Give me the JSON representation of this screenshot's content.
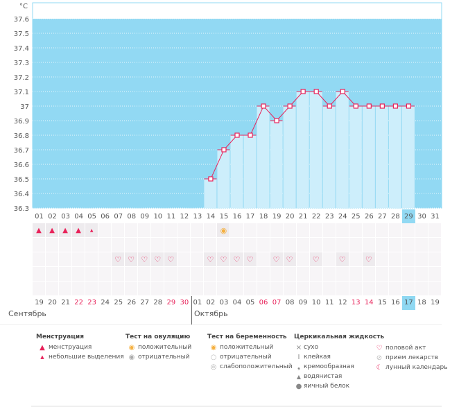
{
  "chart_data": {
    "type": "bar",
    "unit": "°C",
    "ylim": [
      36.3,
      37.6
    ],
    "yticks": [
      "37.6",
      "37.5",
      "37.4",
      "37.3",
      "37.2",
      "37.1",
      "37",
      "36.9",
      "36.8",
      "36.7",
      "36.6",
      "36.5",
      "36.4",
      "36.3"
    ],
    "categories": [
      "01",
      "02",
      "03",
      "04",
      "05",
      "06",
      "07",
      "08",
      "09",
      "10",
      "11",
      "12",
      "13",
      "14",
      "15",
      "16",
      "17",
      "18",
      "19",
      "20",
      "21",
      "22",
      "23",
      "24",
      "25",
      "26",
      "27",
      "28",
      "29",
      "30",
      "31"
    ],
    "values": [
      null,
      null,
      null,
      null,
      null,
      null,
      null,
      null,
      null,
      null,
      null,
      null,
      null,
      36.5,
      36.7,
      36.8,
      36.8,
      37.0,
      36.9,
      37.0,
      37.1,
      37.1,
      37.0,
      37.1,
      37.0,
      37.0,
      37.0,
      37.0,
      37.0,
      null,
      null
    ],
    "highlight_day": "29",
    "colors": {
      "background": "#92d9f3",
      "bar": "#cdeefb",
      "line": "#e8225a"
    }
  },
  "rows": {
    "menstruation": {
      "1": "heavy",
      "2": "heavy",
      "3": "heavy",
      "4": "heavy",
      "5": "light"
    },
    "ovulation_test": {
      "15": "positive"
    },
    "intercourse": [
      7,
      8,
      9,
      10,
      11,
      14,
      15,
      16,
      17,
      19,
      20,
      22,
      24,
      26
    ]
  },
  "dates": [
    {
      "d": "19"
    },
    {
      "d": "20"
    },
    {
      "d": "21"
    },
    {
      "d": "22",
      "red": true
    },
    {
      "d": "23",
      "red": true
    },
    {
      "d": "24"
    },
    {
      "d": "25"
    },
    {
      "d": "26"
    },
    {
      "d": "27"
    },
    {
      "d": "28"
    },
    {
      "d": "29",
      "red": true
    },
    {
      "d": "30",
      "red": true
    },
    {
      "d": "01"
    },
    {
      "d": "02"
    },
    {
      "d": "03"
    },
    {
      "d": "04"
    },
    {
      "d": "05"
    },
    {
      "d": "06",
      "red": true
    },
    {
      "d": "07",
      "red": true
    },
    {
      "d": "08"
    },
    {
      "d": "09"
    },
    {
      "d": "10"
    },
    {
      "d": "11"
    },
    {
      "d": "12"
    },
    {
      "d": "13",
      "red": true
    },
    {
      "d": "14",
      "red": true
    },
    {
      "d": "15"
    },
    {
      "d": "16"
    },
    {
      "d": "17",
      "today": true
    },
    {
      "d": "18"
    },
    {
      "d": "19"
    }
  ],
  "months": {
    "first": "Сентябрь",
    "second": "Октябрь"
  },
  "legend": {
    "menstruation": {
      "title": "Менструация",
      "items": [
        "менструация",
        "небольшие выделения"
      ]
    },
    "ovulation": {
      "title": "Тест на овуляцию",
      "items": [
        "положительный",
        "отрицательный"
      ]
    },
    "pregnancy": {
      "title": "Тест на беременность",
      "items": [
        "положительный",
        "отрицательный",
        "слабоположительный"
      ]
    },
    "cervical": {
      "title": "Церкикальная жидкость",
      "items": [
        "сухо",
        "клейкая",
        "кремообразная",
        "водянистая",
        "яичный белок"
      ]
    },
    "other": {
      "items": [
        "половой акт",
        "прием лекарств",
        "лунный календарь"
      ]
    }
  }
}
